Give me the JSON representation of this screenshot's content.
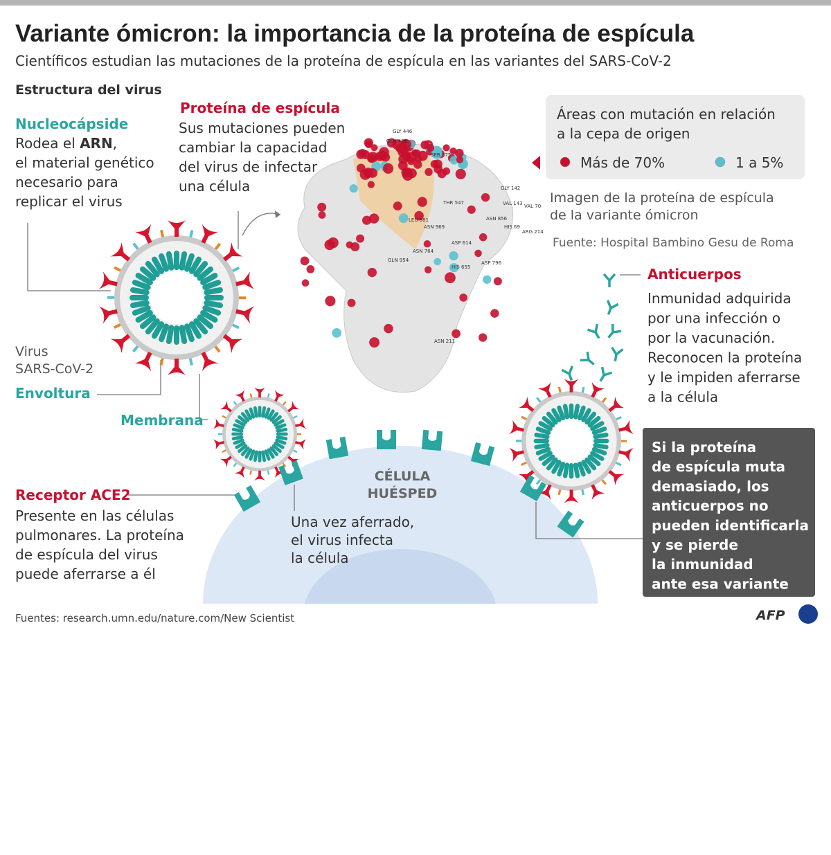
{
  "header": {
    "title": "Variante ómicron: la importancia de la proteína de espícula",
    "subtitle": "Científicos estudian las mutaciones de la proteína de espícula en las variantes del SARS-CoV-2"
  },
  "structure_title": "Estructura del virus",
  "nucleocapsid": {
    "title": "Nucleocápside",
    "intro": [
      "Rodea el ",
      "ARN",
      ","
    ],
    "lines": [
      "el material genético",
      "necesario para",
      "replicar el virus"
    ]
  },
  "spike_protein": {
    "title": "Proteína de espícula",
    "lines": [
      "Sus mutaciones pueden",
      "cambiar la capacidad",
      "del virus de infectar",
      "una célula"
    ]
  },
  "legend": {
    "title_lines": [
      "Áreas con mutación en relación",
      "a la cepa de origen"
    ],
    "items": [
      {
        "label": "Más de 70%",
        "color": "#c8102e"
      },
      {
        "label": "1 a 5%",
        "color": "#5bc0d0"
      }
    ]
  },
  "image_caption": {
    "lines": [
      "Imagen de la proteína de espícula",
      "de la variante ómicron"
    ],
    "source": "Fuente: Hospital Bambino Gesu de Roma"
  },
  "protein_labels": [
    "GLY 446",
    "GLN 498",
    "SER 375",
    "THR 547",
    "LEU 981",
    "ASN 969",
    "ASN 856",
    "ASP 614",
    "ASN 764",
    "GLN 954",
    "HIS 655",
    "ASP 796",
    "GLY 142",
    "VAL 143",
    "VAL 70",
    "HIS 69",
    "ARG 214",
    "ASN 211"
  ],
  "virus_label": [
    "Virus",
    "SARS-CoV-2"
  ],
  "envelope": "Envoltura",
  "membrane": "Membrana",
  "antibodies": {
    "title": "Anticuerpos",
    "lines": [
      "Inmunidad adquirida",
      "por una infección o",
      "por la vacunación.",
      "Reconocen la proteína",
      "y le impiden aferrarse",
      "a la célula"
    ]
  },
  "host_cell": [
    "CÉLULA",
    "HUÉSPED"
  ],
  "receptor": {
    "title": "Receptor ACE2",
    "lines": [
      "Presente en las células",
      "pulmonares. La proteína",
      "de espícula del virus",
      "puede aferrarse a él"
    ]
  },
  "infection": [
    "Una vez aferrado,",
    "el virus infecta",
    "la célula"
  ],
  "warning": [
    "Si la proteína",
    "de espícula muta",
    "demasiado, los",
    "anticuerpos no",
    "pueden identificarla",
    "y se pierde",
    "la inmunidad",
    "ante esa variante"
  ],
  "footer": {
    "sources": "Fuentes: research.umn.edu/nature.com/New Scientist",
    "logo": "AFP"
  }
}
